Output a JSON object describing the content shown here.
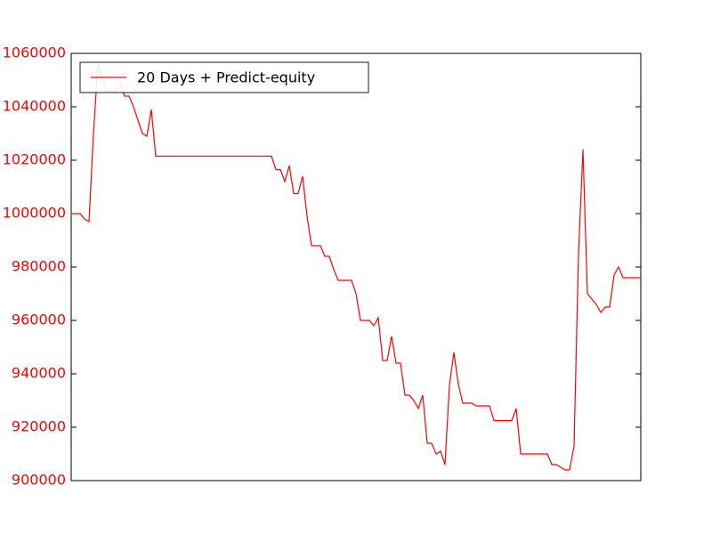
{
  "chart_data": {
    "type": "line",
    "series": [
      {
        "name": "20 Days + Predict-equity",
        "color": "#ff0000",
        "values": [
          1000000,
          1000000,
          1000000,
          998000,
          997000,
          1030000,
          1056000,
          1050000,
          1046000,
          1046000,
          1046000,
          1049000,
          1044000,
          1044000,
          1040000,
          1035000,
          1030000,
          1029000,
          1039000,
          1021500,
          1021500,
          1021500,
          1021500,
          1021500,
          1021500,
          1021500,
          1021500,
          1021500,
          1021500,
          1021500,
          1021500,
          1021500,
          1021500,
          1021500,
          1021500,
          1021500,
          1021500,
          1021500,
          1021500,
          1021500,
          1021500,
          1021500,
          1021500,
          1021500,
          1021500,
          1021500,
          1016500,
          1016500,
          1012000,
          1018000,
          1007500,
          1007500,
          1014000,
          999000,
          988000,
          988000,
          988000,
          984000,
          984000,
          979000,
          975000,
          975000,
          975000,
          975000,
          970000,
          960000,
          960000,
          960000,
          958000,
          961000,
          945000,
          945000,
          954000,
          944000,
          944000,
          932000,
          932000,
          930000,
          927000,
          932000,
          914000,
          914000,
          910000,
          911000,
          906000,
          936000,
          948000,
          936000,
          929000,
          929000,
          929000,
          928000,
          928000,
          928000,
          928000,
          922500,
          922500,
          922500,
          922500,
          922500,
          927000,
          910000,
          910000,
          910000,
          910000,
          910000,
          910000,
          910000,
          906000,
          906000,
          905000,
          904000,
          904000,
          913000,
          985000,
          1024000,
          970000,
          968000,
          966000,
          963000,
          965000,
          965000,
          977000,
          980000,
          976000,
          976000,
          976000,
          976000,
          976000
        ]
      }
    ],
    "ylim": [
      900000,
      1060000
    ],
    "yticks": [
      900000,
      920000,
      940000,
      960000,
      980000,
      1000000,
      1020000,
      1040000,
      1060000
    ],
    "tick_color": "#ff0000",
    "legend": "upper left"
  }
}
